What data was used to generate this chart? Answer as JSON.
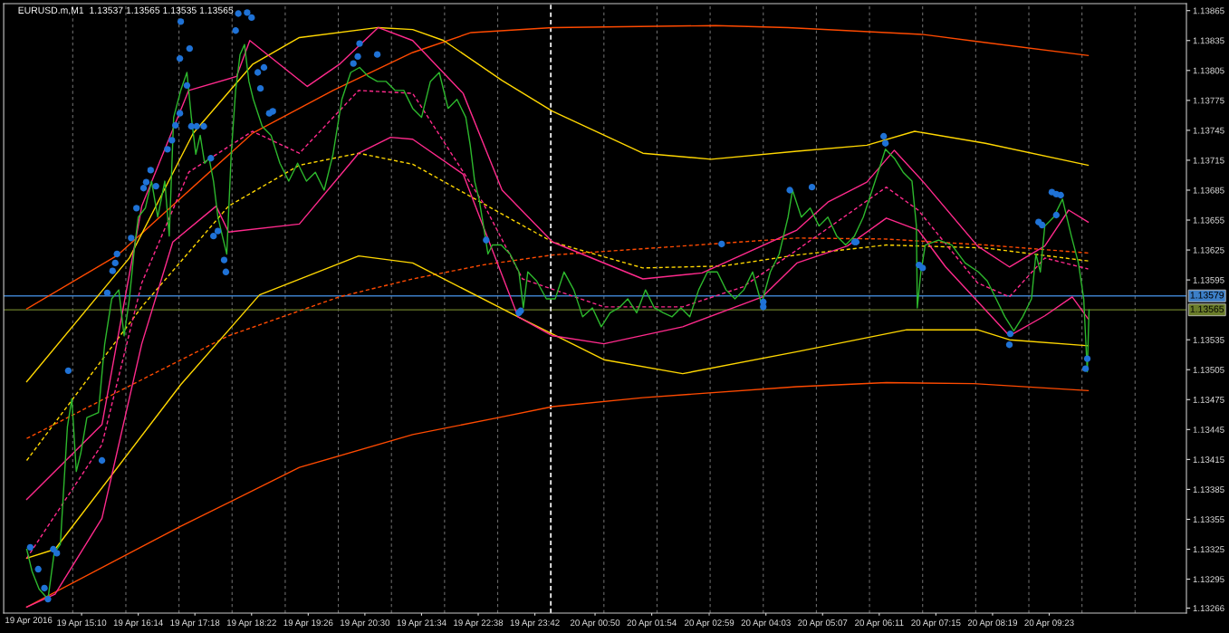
{
  "chart_data": {
    "type": "line",
    "title": "EURUSD.m,M1  1.13537 1.13565 1.13535 1.13565",
    "xlim": [
      "2016-04-19T13:42",
      "2016-04-20T11:58"
    ],
    "ylim": [
      1.13261,
      1.13872
    ],
    "annotations": [
      "19 Apr 2016"
    ],
    "xticks": [
      {
        "value": "2016-04-19T15:10",
        "label": "19 Apr 15:10"
      },
      {
        "value": "2016-04-19T16:14",
        "label": "19 Apr 16:14"
      },
      {
        "value": "2016-04-19T17:18",
        "label": "19 Apr 17:18"
      },
      {
        "value": "2016-04-19T18:22",
        "label": "19 Apr 18:22"
      },
      {
        "value": "2016-04-19T19:26",
        "label": "19 Apr 19:26"
      },
      {
        "value": "2016-04-19T20:30",
        "label": "19 Apr 20:30"
      },
      {
        "value": "2016-04-19T21:34",
        "label": "19 Apr 21:34"
      },
      {
        "value": "2016-04-19T22:38",
        "label": "19 Apr 22:38"
      },
      {
        "value": "2016-04-19T23:42",
        "label": "19 Apr 23:42"
      },
      {
        "value": "2016-04-20T00:50",
        "label": "20 Apr 00:50"
      },
      {
        "value": "2016-04-20T01:54",
        "label": "20 Apr 01:54"
      },
      {
        "value": "2016-04-20T02:59",
        "label": "20 Apr 02:59"
      },
      {
        "value": "2016-04-20T04:03",
        "label": "20 Apr 04:03"
      },
      {
        "value": "2016-04-20T05:07",
        "label": "20 Apr 05:07"
      },
      {
        "value": "2016-04-20T06:11",
        "label": "20 Apr 06:11"
      },
      {
        "value": "2016-04-20T07:15",
        "label": "20 Apr 07:15"
      },
      {
        "value": "2016-04-20T08:19",
        "label": "20 Apr 08:19"
      },
      {
        "value": "2016-04-20T09:23",
        "label": "20 Apr 09:23"
      },
      {
        "value": "2016-04-19T15:00",
        "label": null
      },
      {
        "value": "2016-04-19T16:00",
        "label": null
      },
      {
        "value": "2016-04-19T17:00",
        "label": null
      },
      {
        "value": "2016-04-19T18:00",
        "label": null
      },
      {
        "value": "2016-04-19T19:00",
        "label": null
      },
      {
        "value": "2016-04-19T20:00",
        "label": null
      },
      {
        "value": "2016-04-19T21:00",
        "label": null
      },
      {
        "value": "2016-04-19T22:00",
        "label": null
      },
      {
        "value": "2016-04-19T23:00",
        "label": null
      },
      {
        "value": "2016-04-20T01:00",
        "label": null
      },
      {
        "value": "2016-04-20T02:00",
        "label": null
      },
      {
        "value": "2016-04-20T03:00",
        "label": null
      },
      {
        "value": "2016-04-20T04:00",
        "label": null
      },
      {
        "value": "2016-04-20T05:00",
        "label": null
      },
      {
        "value": "2016-04-20T06:00",
        "label": null
      },
      {
        "value": "2016-04-20T07:00",
        "label": null
      },
      {
        "value": "2016-04-20T08:00",
        "label": null
      },
      {
        "value": "2016-04-20T09:00",
        "label": null
      },
      {
        "value": "2016-04-20T10:00",
        "label": null
      },
      {
        "value": "2016-04-20T11:00",
        "label": null
      }
    ],
    "yticks": [
      1.13865,
      1.13835,
      1.13805,
      1.13775,
      1.13745,
      1.13715,
      1.13685,
      1.13655,
      1.13625,
      1.13595,
      1.13535,
      1.13505,
      1.13475,
      1.13445,
      1.13415,
      1.13385,
      1.13355,
      1.13325,
      1.13295,
      1.13266
    ],
    "grid": "x",
    "ref_lines": [
      {
        "axis": "y",
        "value": 1.13579,
        "label": "1.13579",
        "color": "#3c7fc8"
      },
      {
        "axis": "y",
        "value": 1.13565,
        "label": "1.13565",
        "color": "#6b7d2a"
      },
      {
        "axis": "x",
        "value": "2016-04-20T00:00",
        "label": null,
        "color": "#ffffff",
        "line_style": "dashed"
      }
    ],
    "series": [
      {
        "color": "#ff4a00",
        "x": [
          "2016-04-19T14:08",
          "2016-04-19T15:51",
          "2016-04-19T18:23",
          "2016-04-19T19:54",
          "2016-04-19T21:24",
          "2016-04-19T22:30",
          "2016-04-20T00:02",
          "2016-04-20T03:06",
          "2016-04-20T04:28",
          "2016-04-20T07:01",
          "2016-04-20T08:11",
          "2016-04-20T10:07"
        ],
        "values": [
          1.13566,
          1.1362,
          1.13742,
          1.13785,
          1.13823,
          1.13843,
          1.13848,
          1.1385,
          1.13848,
          1.13841,
          1.13833,
          1.1382
        ]
      },
      {
        "color": "#ff4a00",
        "x": [
          "2016-04-19T14:08",
          "2016-04-19T17:02",
          "2016-04-19T19:16",
          "2016-04-19T21:24",
          "2016-04-19T23:01",
          "2016-04-20T00:02",
          "2016-04-20T01:44",
          "2016-04-20T04:38",
          "2016-04-20T06:19",
          "2016-04-20T07:58",
          "2016-04-20T10:07"
        ],
        "values": [
          1.13267,
          1.13348,
          1.13407,
          1.1344,
          1.13457,
          1.13468,
          1.13477,
          1.13488,
          1.13492,
          1.13491,
          1.13484
        ]
      },
      {
        "color": "#ff4a00",
        "line_style": "dashed",
        "x": [
          "2016-04-19T14:08",
          "2016-04-19T16:18",
          "2016-04-19T17:56",
          "2016-04-19T20:01",
          "2016-04-19T21:24",
          "2016-04-19T22:43",
          "2016-04-20T00:02",
          "2016-04-20T02:29",
          "2016-04-20T04:38",
          "2016-04-20T06:19",
          "2016-04-20T08:11",
          "2016-04-20T10:07"
        ],
        "values": [
          1.13436,
          1.13495,
          1.13539,
          1.13578,
          1.13596,
          1.1361,
          1.1362,
          1.13629,
          1.13637,
          1.13636,
          1.1363,
          1.13622
        ]
      },
      {
        "color": "#ffd700",
        "x": [
          "2016-04-19T14:08",
          "2016-04-19T16:04",
          "2016-04-19T17:16",
          "2016-04-19T18:23",
          "2016-04-19T19:16",
          "2016-04-19T20:45",
          "2016-04-19T21:24",
          "2016-04-19T21:59",
          "2016-04-19T23:05",
          "2016-04-20T00:02",
          "2016-04-20T01:44",
          "2016-04-20T03:01",
          "2016-04-20T04:38",
          "2016-04-20T05:57",
          "2016-04-20T06:51",
          "2016-04-20T08:11",
          "2016-04-20T10:07"
        ],
        "values": [
          1.13493,
          1.13617,
          1.13742,
          1.13811,
          1.13838,
          1.13848,
          1.13846,
          1.13835,
          1.13795,
          1.13764,
          1.13722,
          1.13716,
          1.13724,
          1.1373,
          1.13744,
          1.13732,
          1.1371
        ]
      },
      {
        "color": "#ffd700",
        "x": [
          "2016-04-19T14:08",
          "2016-04-19T14:40",
          "2016-04-19T17:02",
          "2016-04-19T18:31",
          "2016-04-19T20:23",
          "2016-04-19T21:24",
          "2016-04-19T23:23",
          "2016-04-20T01:00",
          "2016-04-20T02:29",
          "2016-04-20T04:38",
          "2016-04-20T06:42",
          "2016-04-20T08:02",
          "2016-04-20T08:38",
          "2016-04-20T10:07"
        ],
        "values": [
          1.13316,
          1.13325,
          1.1349,
          1.1358,
          1.13619,
          1.13612,
          1.13558,
          1.13515,
          1.13501,
          1.13523,
          1.13545,
          1.13545,
          1.13535,
          1.13529
        ]
      },
      {
        "color": "#ffd700",
        "line_style": "dashed",
        "x": [
          "2016-04-19T14:08",
          "2016-04-19T16:18",
          "2016-04-19T17:56",
          "2016-04-19T19:16",
          "2016-04-19T20:23",
          "2016-04-19T21:24",
          "2016-04-19T23:05",
          "2016-04-20T00:02",
          "2016-04-20T01:44",
          "2016-04-20T03:15",
          "2016-04-20T04:38",
          "2016-04-20T06:19",
          "2016-04-20T08:11",
          "2016-04-20T10:07"
        ],
        "values": [
          1.13414,
          1.13568,
          1.13669,
          1.1371,
          1.13722,
          1.13711,
          1.13661,
          1.13633,
          1.13607,
          1.13609,
          1.1362,
          1.1363,
          1.13627,
          1.13614
        ]
      },
      {
        "color": "#ff2a8c",
        "x": [
          "2016-04-19T14:08",
          "2016-04-19T15:33",
          "2016-04-19T16:18",
          "2016-04-19T17:11",
          "2016-04-19T18:05",
          "2016-04-19T18:20",
          "2016-04-19T19:25",
          "2016-04-19T20:01",
          "2016-04-19T20:45",
          "2016-04-19T21:24",
          "2016-04-19T22:21",
          "2016-04-19T23:05",
          "2016-04-20T00:02",
          "2016-04-20T01:44",
          "2016-04-20T02:51",
          "2016-04-20T04:38",
          "2016-04-20T05:13",
          "2016-04-20T05:57",
          "2016-04-20T06:28",
          "2016-04-20T07:01",
          "2016-04-20T08:02",
          "2016-04-20T08:38",
          "2016-04-20T09:18",
          "2016-04-20T09:45",
          "2016-04-20T10:07"
        ],
        "values": [
          1.13375,
          1.1345,
          1.13669,
          1.13785,
          1.13799,
          1.13835,
          1.13789,
          1.13811,
          1.13848,
          1.13835,
          1.13782,
          1.13685,
          1.13633,
          1.13596,
          1.13602,
          1.13645,
          1.13673,
          1.13693,
          1.13725,
          1.13693,
          1.13629,
          1.13608,
          1.13629,
          1.13665,
          1.13653
        ]
      },
      {
        "color": "#ff2a8c",
        "x": [
          "2016-04-19T14:08",
          "2016-04-19T14:40",
          "2016-04-19T15:33",
          "2016-04-19T16:18",
          "2016-04-19T16:53",
          "2016-04-19T17:42",
          "2016-04-19T17:56",
          "2016-04-19T19:16",
          "2016-04-19T20:23",
          "2016-04-19T20:59",
          "2016-04-19T21:24",
          "2016-04-19T22:21",
          "2016-04-19T23:23",
          "2016-04-20T00:02",
          "2016-04-20T01:00",
          "2016-04-20T02:29",
          "2016-04-20T03:59",
          "2016-04-20T04:38",
          "2016-04-20T05:35",
          "2016-04-20T06:19",
          "2016-04-20T06:55",
          "2016-04-20T07:26",
          "2016-04-20T08:38",
          "2016-04-20T09:18",
          "2016-04-20T09:49",
          "2016-04-20T10:07"
        ],
        "values": [
          1.13267,
          1.1328,
          1.13356,
          1.13531,
          1.13633,
          1.13669,
          1.13643,
          1.13651,
          1.13722,
          1.13738,
          1.13736,
          1.13701,
          1.13558,
          1.13539,
          1.13531,
          1.13548,
          1.13578,
          1.13612,
          1.13629,
          1.13657,
          1.13645,
          1.13608,
          1.13539,
          1.13559,
          1.13578,
          1.13556
        ]
      },
      {
        "color": "#ff2a8c",
        "line_style": "dashed",
        "x": [
          "2016-04-19T14:08",
          "2016-04-19T15:33",
          "2016-04-19T16:18",
          "2016-04-19T17:11",
          "2016-04-19T18:23",
          "2016-04-19T19:16",
          "2016-04-19T20:23",
          "2016-04-19T21:24",
          "2016-04-19T22:43",
          "2016-04-19T23:28",
          "2016-04-20T01:00",
          "2016-04-20T02:29",
          "2016-04-20T03:37",
          "2016-04-20T04:38",
          "2016-04-20T06:19",
          "2016-04-20T06:55",
          "2016-04-20T08:02",
          "2016-04-20T08:38",
          "2016-04-20T09:18",
          "2016-04-20T10:07"
        ],
        "values": [
          1.13316,
          1.1343,
          1.13592,
          1.13703,
          1.13744,
          1.13722,
          1.13785,
          1.13782,
          1.13673,
          1.13596,
          1.13568,
          1.13568,
          1.13588,
          1.13625,
          1.13688,
          1.13665,
          1.13592,
          1.13578,
          1.13617,
          1.13606
        ]
      },
      {
        "color": "#2db82d",
        "x": [
          "2016-04-19T14:08",
          "2016-04-19T14:14",
          "2016-04-19T14:22",
          "2016-04-19T14:32",
          "2016-04-19T14:39",
          "2016-04-19T14:46",
          "2016-04-19T14:54",
          "2016-04-19T14:59",
          "2016-04-19T15:04",
          "2016-04-19T15:09",
          "2016-04-19T15:16",
          "2016-04-19T15:29",
          "2016-04-19T15:36",
          "2016-04-19T15:44",
          "2016-04-19T15:52",
          "2016-04-19T15:58",
          "2016-04-19T16:04",
          "2016-04-19T16:09",
          "2016-04-19T16:14",
          "2016-04-19T16:22",
          "2016-04-19T16:29",
          "2016-04-19T16:36",
          "2016-04-19T16:44",
          "2016-04-19T16:49",
          "2016-04-19T16:54",
          "2016-04-19T17:02",
          "2016-04-19T17:09",
          "2016-04-19T17:14",
          "2016-04-19T17:19",
          "2016-04-19T17:24",
          "2016-04-19T17:29",
          "2016-04-19T17:34",
          "2016-04-19T17:39",
          "2016-04-19T17:44",
          "2016-04-19T17:49",
          "2016-04-19T17:54",
          "2016-04-19T17:59",
          "2016-04-19T18:04",
          "2016-04-19T18:09",
          "2016-04-19T18:14",
          "2016-04-19T18:19",
          "2016-04-19T18:24",
          "2016-04-19T18:34",
          "2016-04-19T18:44",
          "2016-04-19T18:54",
          "2016-04-19T19:04",
          "2016-04-19T19:14",
          "2016-04-19T19:24",
          "2016-04-19T19:34",
          "2016-04-19T19:44",
          "2016-04-19T19:54",
          "2016-04-19T20:04",
          "2016-04-19T20:14",
          "2016-04-19T20:24",
          "2016-04-19T20:34",
          "2016-04-19T20:44",
          "2016-04-19T20:54",
          "2016-04-19T21:04",
          "2016-04-19T21:14",
          "2016-04-19T21:24",
          "2016-04-19T21:34",
          "2016-04-19T21:44",
          "2016-04-19T21:54",
          "2016-04-19T22:04",
          "2016-04-19T22:14",
          "2016-04-19T22:24",
          "2016-04-19T22:29",
          "2016-04-19T22:34",
          "2016-04-19T22:39",
          "2016-04-19T22:44",
          "2016-04-19T22:49",
          "2016-04-19T22:54",
          "2016-04-19T23:04",
          "2016-04-19T23:14",
          "2016-04-19T23:24",
          "2016-04-19T23:29",
          "2016-04-19T23:34",
          "2016-04-19T23:44",
          "2016-04-19T23:55",
          "2016-04-20T00:05",
          "2016-04-20T00:15",
          "2016-04-20T00:26",
          "2016-04-20T00:36",
          "2016-04-20T00:47",
          "2016-04-20T00:57",
          "2016-04-20T01:07",
          "2016-04-20T01:17",
          "2016-04-20T01:27",
          "2016-04-20T01:37",
          "2016-04-20T01:47",
          "2016-04-20T01:57",
          "2016-04-20T02:07",
          "2016-04-20T02:17",
          "2016-04-20T02:27",
          "2016-04-20T02:37",
          "2016-04-20T02:47",
          "2016-04-20T02:57",
          "2016-04-20T03:08",
          "2016-04-20T03:18",
          "2016-04-20T03:28",
          "2016-04-20T03:38",
          "2016-04-20T03:48",
          "2016-04-20T03:58",
          "2016-04-20T04:08",
          "2016-04-20T04:18",
          "2016-04-20T04:28",
          "2016-04-20T04:33",
          "2016-04-20T04:43",
          "2016-04-20T04:53",
          "2016-04-20T05:03",
          "2016-04-20T05:13",
          "2016-04-20T05:23",
          "2016-04-20T05:33",
          "2016-04-20T05:43",
          "2016-04-20T05:53",
          "2016-04-20T06:03",
          "2016-04-20T06:13",
          "2016-04-20T06:18",
          "2016-04-20T06:28",
          "2016-04-20T06:38",
          "2016-04-20T06:48",
          "2016-04-20T06:53",
          "2016-04-20T06:54",
          "2016-04-20T06:58",
          "2016-04-20T07:03",
          "2016-04-20T07:18",
          "2016-04-20T07:33",
          "2016-04-20T07:48",
          "2016-04-20T08:03",
          "2016-04-20T08:13",
          "2016-04-20T08:23",
          "2016-04-20T08:33",
          "2016-04-20T08:43",
          "2016-04-20T08:53",
          "2016-04-20T09:03",
          "2016-04-20T09:08",
          "2016-04-20T09:13",
          "2016-04-20T09:18",
          "2016-04-20T09:28",
          "2016-04-20T09:38",
          "2016-04-20T09:48",
          "2016-04-20T09:56",
          "2016-04-20T10:02",
          "2016-04-20T10:06",
          "2016-04-20T10:08"
        ],
        "values": [
          1.13325,
          1.13303,
          1.13285,
          1.13275,
          1.13321,
          1.1333,
          1.13448,
          1.13476,
          1.13403,
          1.13421,
          1.13457,
          1.13462,
          1.1353,
          1.13576,
          1.13585,
          1.13539,
          1.13576,
          1.13621,
          1.13658,
          1.13667,
          1.13694,
          1.13658,
          1.13694,
          1.13639,
          1.13758,
          1.13785,
          1.13803,
          1.13758,
          1.13721,
          1.1374,
          1.13712,
          1.13717,
          1.13694,
          1.13658,
          1.13639,
          1.13621,
          1.13721,
          1.13785,
          1.13821,
          1.13831,
          1.13794,
          1.13776,
          1.13749,
          1.1374,
          1.13712,
          1.13694,
          1.13712,
          1.13694,
          1.13703,
          1.13685,
          1.13721,
          1.13776,
          1.13803,
          1.13808,
          1.13799,
          1.13794,
          1.13794,
          1.13785,
          1.13785,
          1.13767,
          1.13758,
          1.13794,
          1.13803,
          1.13767,
          1.13776,
          1.13758,
          1.1373,
          1.13694,
          1.13676,
          1.13649,
          1.13621,
          1.1363,
          1.1363,
          1.13621,
          1.13603,
          1.13567,
          1.13603,
          1.13594,
          1.13576,
          1.13576,
          1.13603,
          1.13585,
          1.13558,
          1.13567,
          1.13548,
          1.13562,
          1.13567,
          1.13576,
          1.13562,
          1.13585,
          1.13567,
          1.13562,
          1.13558,
          1.13567,
          1.13558,
          1.13585,
          1.13603,
          1.13603,
          1.13585,
          1.13576,
          1.13585,
          1.13603,
          1.13571,
          1.13603,
          1.13621,
          1.13658,
          1.13685,
          1.13658,
          1.13667,
          1.13649,
          1.13658,
          1.13639,
          1.1363,
          1.13639,
          1.13658,
          1.13685,
          1.13712,
          1.13726,
          1.13717,
          1.13703,
          1.13694,
          1.13649,
          1.13567,
          1.13603,
          1.1363,
          1.13635,
          1.1363,
          1.13612,
          1.13603,
          1.13594,
          1.13576,
          1.13558,
          1.13544,
          1.13558,
          1.13576,
          1.13621,
          1.13603,
          1.13649,
          1.13658,
          1.13676,
          1.13639,
          1.13612,
          1.13576,
          1.13503,
          1.13565
        ]
      },
      {
        "type": "scatter",
        "color": "#1f72d6",
        "marker": "circle",
        "x": [
          "2016-04-19T14:12",
          "2016-04-19T14:21",
          "2016-04-19T14:28",
          "2016-04-19T14:32",
          "2016-04-19T14:38",
          "2016-04-19T14:42",
          "2016-04-19T14:55",
          "2016-04-19T15:33",
          "2016-04-19T15:39",
          "2016-04-19T15:45",
          "2016-04-19T15:48",
          "2016-04-19T15:50",
          "2016-04-19T16:06",
          "2016-04-19T16:12",
          "2016-04-19T16:20",
          "2016-04-19T16:23",
          "2016-04-19T16:28",
          "2016-04-19T16:34",
          "2016-04-19T16:47",
          "2016-04-19T16:52",
          "2016-04-19T16:56",
          "2016-04-19T17:01",
          "2016-04-19T17:01",
          "2016-04-19T17:02",
          "2016-04-19T17:09",
          "2016-04-19T17:12",
          "2016-04-19T17:14",
          "2016-04-19T17:20",
          "2016-04-19T17:28",
          "2016-04-19T17:36",
          "2016-04-19T17:39",
          "2016-04-19T17:44",
          "2016-04-19T17:51",
          "2016-04-19T17:53",
          "2016-04-19T18:04",
          "2016-04-19T18:07",
          "2016-04-19T18:17",
          "2016-04-19T18:22",
          "2016-04-19T18:29",
          "2016-04-19T18:32",
          "2016-04-19T18:36",
          "2016-04-19T18:42",
          "2016-04-19T18:46",
          "2016-04-19T20:17",
          "2016-04-19T20:22",
          "2016-04-19T20:24",
          "2016-04-19T20:44",
          "2016-04-19T22:47",
          "2016-04-19T23:24",
          "2016-04-19T23:26",
          "2016-04-20T03:13",
          "2016-04-20T04:00",
          "2016-04-20T04:00",
          "2016-04-20T04:30",
          "2016-04-20T04:55",
          "2016-04-20T05:43",
          "2016-04-20T05:45",
          "2016-04-20T06:16",
          "2016-04-20T06:18",
          "2016-04-20T06:56",
          "2016-04-20T07:00",
          "2016-04-20T08:38",
          "2016-04-20T08:39",
          "2016-04-20T09:11",
          "2016-04-20T09:15",
          "2016-04-20T09:26",
          "2016-04-20T09:31",
          "2016-04-20T09:36",
          "2016-04-20T09:31",
          "2016-04-20T10:04",
          "2016-04-20T10:06"
        ],
        "values": [
          1.13327,
          1.13305,
          1.13286,
          1.13275,
          1.13325,
          1.13321,
          1.13504,
          1.13414,
          1.13582,
          1.13604,
          1.13612,
          1.13621,
          1.13637,
          1.13667,
          1.13687,
          1.13693,
          1.13705,
          1.13689,
          1.13726,
          1.13735,
          1.1375,
          1.13762,
          1.13817,
          1.13854,
          1.1379,
          1.13827,
          1.13749,
          1.13749,
          1.13749,
          1.13717,
          1.13639,
          1.13644,
          1.13615,
          1.13603,
          1.13845,
          1.13862,
          1.13863,
          1.13858,
          1.13803,
          1.13787,
          1.13808,
          1.13762,
          1.13764,
          1.13812,
          1.13819,
          1.13832,
          1.13821,
          1.13635,
          1.13562,
          1.13564,
          1.13631,
          1.13568,
          1.13573,
          1.13685,
          1.13688,
          1.13633,
          1.13633,
          1.13739,
          1.13732,
          1.1361,
          1.13607,
          1.1353,
          1.13541,
          1.13653,
          1.1365,
          1.13683,
          1.13681,
          1.1368,
          1.1366,
          1.13506,
          1.13516
        ]
      }
    ]
  }
}
